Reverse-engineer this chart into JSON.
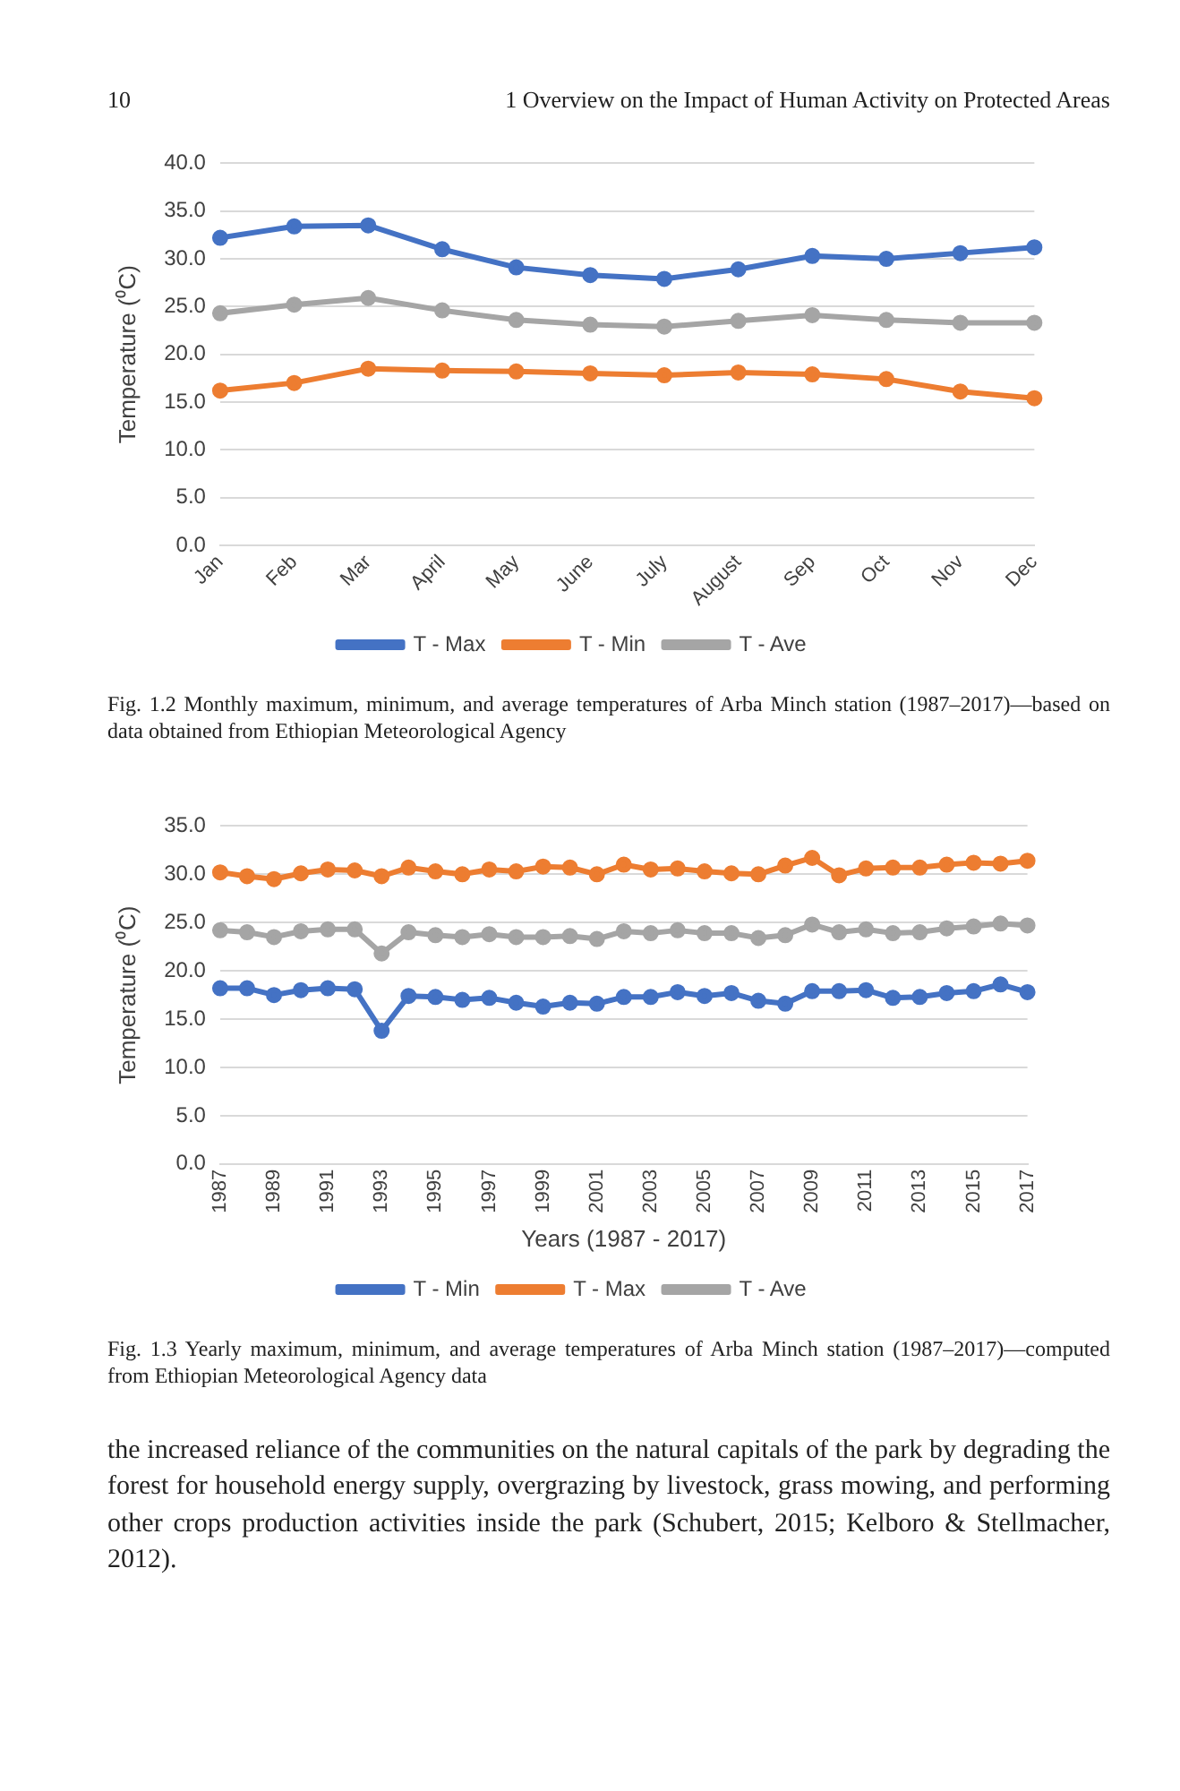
{
  "chart_data": [
    {
      "type": "line",
      "ylabel": "Temperature (⁰C)",
      "categories": [
        "Jan",
        "Feb",
        "Mar",
        "April",
        "May",
        "June",
        "July",
        "August",
        "Sep",
        "Oct",
        "Nov",
        "Dec"
      ],
      "series": [
        {
          "name": "T - Max",
          "color": "#4472c4",
          "values": [
            32.2,
            33.4,
            33.5,
            31.0,
            29.1,
            28.3,
            27.9,
            28.9,
            30.3,
            30.0,
            30.6,
            31.2
          ]
        },
        {
          "name": "T - Min",
          "color": "#ed7d31",
          "values": [
            16.2,
            17.0,
            18.5,
            18.3,
            18.2,
            18.0,
            17.8,
            18.1,
            17.9,
            17.4,
            16.1,
            15.4
          ]
        },
        {
          "name": "T - Ave",
          "color": "#a5a5a5",
          "values": [
            24.3,
            25.2,
            25.9,
            24.6,
            23.6,
            23.1,
            22.9,
            23.5,
            24.1,
            23.6,
            23.3,
            23.3
          ]
        }
      ],
      "ylim": [
        0,
        40
      ],
      "yticks": [
        {
          "value": 0,
          "label": "0.0"
        },
        {
          "value": 5,
          "label": "5.0"
        },
        {
          "value": 10,
          "label": "10.0"
        },
        {
          "value": 15,
          "label": "15.0"
        },
        {
          "value": 20,
          "label": "20.0"
        },
        {
          "value": 25,
          "label": "25.0"
        },
        {
          "value": 30,
          "label": "30.0"
        },
        {
          "value": 35,
          "label": "35.0"
        },
        {
          "value": 40,
          "label": "40.0"
        }
      ],
      "grid": "y",
      "legend": "bottom",
      "marker": "circle",
      "line_style": "solid",
      "annotations": [
        "10",
        "1 Overview on the Impact of Human Activity on Protected Areas",
        "Fig. 1.2 Monthly maximum, minimum, and average temperatures of Arba Minch station (1987–2017)—based on data obtained from Ethiopian Meteorological Agency"
      ]
    },
    {
      "type": "line",
      "ylabel": "Temperature (⁰C)",
      "xlabel": "Years (1987 - 2017)",
      "categories": [
        "1987",
        null,
        "1989",
        null,
        "1991",
        null,
        "1993",
        null,
        "1995",
        null,
        "1997",
        null,
        "1999",
        null,
        "2001",
        null,
        "2003",
        null,
        "2005",
        null,
        "2007",
        null,
        "2009",
        null,
        "2011",
        null,
        "2013",
        null,
        "2015",
        null,
        "2017"
      ],
      "series": [
        {
          "name": "T - Min",
          "color": "#4472c4",
          "values": [
            18.2,
            18.2,
            17.5,
            18.0,
            18.2,
            18.1,
            13.8,
            17.4,
            17.3,
            17.0,
            17.2,
            16.7,
            16.3,
            16.7,
            16.6,
            17.3,
            17.3,
            17.8,
            17.4,
            17.7,
            16.9,
            16.6,
            17.9,
            17.9,
            18.0,
            17.2,
            17.3,
            17.7,
            17.9,
            18.6,
            17.8
          ]
        },
        {
          "name": "T - Max",
          "color": "#ed7d31",
          "values": [
            30.2,
            29.8,
            29.5,
            30.1,
            30.5,
            30.4,
            29.8,
            30.7,
            30.3,
            30.0,
            30.5,
            30.3,
            30.8,
            30.7,
            30.0,
            31.0,
            30.5,
            30.6,
            30.3,
            30.1,
            30.0,
            30.9,
            31.7,
            29.9,
            30.6,
            30.7,
            30.7,
            31.0,
            31.2,
            31.1,
            31.4
          ]
        },
        {
          "name": "T - Ave",
          "color": "#a5a5a5",
          "values": [
            24.2,
            24.0,
            23.5,
            24.1,
            24.3,
            24.3,
            21.8,
            24.0,
            23.7,
            23.5,
            23.8,
            23.5,
            23.5,
            23.6,
            23.3,
            24.1,
            23.9,
            24.2,
            23.9,
            23.9,
            23.4,
            23.7,
            24.8,
            24.0,
            24.3,
            23.9,
            24.0,
            24.4,
            24.6,
            24.9,
            24.7
          ]
        }
      ],
      "ylim": [
        0,
        35
      ],
      "yticks": [
        {
          "value": 0,
          "label": "0.0"
        },
        {
          "value": 5,
          "label": "5.0"
        },
        {
          "value": 10,
          "label": "10.0"
        },
        {
          "value": 15,
          "label": "15.0"
        },
        {
          "value": 20,
          "label": "20.0"
        },
        {
          "value": 25,
          "label": "25.0"
        },
        {
          "value": 30,
          "label": "30.0"
        },
        {
          "value": 35,
          "label": "35.0"
        }
      ],
      "grid": "y",
      "legend": "bottom",
      "marker": "circle",
      "line_style": "solid",
      "annotations": [
        "Fig. 1.3 Yearly maximum, minimum, and average temperatures of Arba Minch station (1987–2017)—computed from Ethiopian Meteorological Agency data",
        "the increased reliance of the communities on the natural capitals of the park by degrading the forest for household energy supply, overgrazing by livestock, grass mowing, and performing other crops production activities inside the park (Schubert, 2015; Kelboro & Stellmacher, 2012)."
      ]
    }
  ]
}
